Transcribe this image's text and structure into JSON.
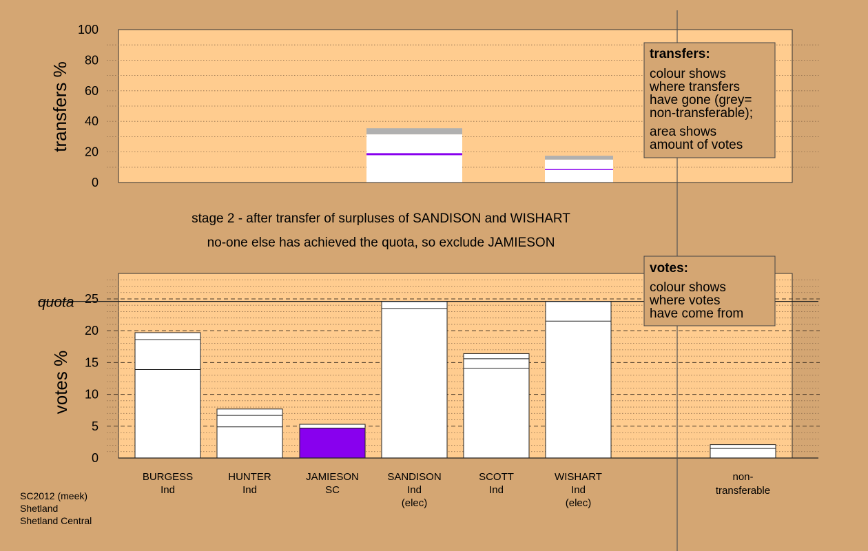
{
  "top_chart": {
    "ylabel": "transfers %",
    "ylim": [
      0,
      100
    ],
    "ticks": [
      0,
      20,
      40,
      60,
      80,
      100
    ]
  },
  "bottom_chart": {
    "ylabel": "votes %",
    "ylim": [
      0,
      29
    ],
    "ticks": [
      0,
      5,
      10,
      15,
      20,
      25
    ],
    "quota_label": "quota",
    "quota": 24.6
  },
  "stage_lines": [
    "stage 2 - after transfer of surpluses of SANDISON and WISHART",
    "no-one else has achieved the quota, so exclude JAMIESON"
  ],
  "legend_transfers": {
    "title": "transfers:",
    "lines": [
      "colour shows",
      "where transfers",
      "have gone (grey=",
      "non-transferable);",
      "area shows",
      "amount of votes"
    ]
  },
  "legend_votes": {
    "title": "votes:",
    "lines": [
      "colour shows",
      "where votes",
      "have come from"
    ]
  },
  "candidates": [
    {
      "name": "BURGESS",
      "party": "Ind",
      "status": ""
    },
    {
      "name": "HUNTER",
      "party": "Ind",
      "status": ""
    },
    {
      "name": "JAMIESON",
      "party": "SC",
      "status": ""
    },
    {
      "name": "SANDISON",
      "party": "Ind",
      "status": "(elec)"
    },
    {
      "name": "SCOTT",
      "party": "Ind",
      "status": ""
    },
    {
      "name": "WISHART",
      "party": "Ind",
      "status": "(elec)"
    }
  ],
  "nontransferable_label": [
    "non-",
    "transferable"
  ],
  "footer": [
    "SC2012 (meek)",
    "Shetland",
    "Shetland Central"
  ],
  "colors": {
    "background": "#d4a673",
    "plot_area": "#ffcc8f",
    "bar": "#ffffff",
    "jamieson": "#8800ee",
    "nontransferable": "#b0b0b0"
  },
  "chart_data": [
    {
      "type": "bar",
      "title": "",
      "ylabel": "transfers %",
      "ylim": [
        0,
        100
      ],
      "grid": true,
      "categories": [
        "SANDISON",
        "WISHART"
      ],
      "bars": [
        {
          "category": "SANDISON",
          "total": 35.5,
          "nontransferable_from": 31.5,
          "jamieson_marker": 18.5
        },
        {
          "category": "WISHART",
          "total": 17.5,
          "nontransferable_from": 15.0,
          "jamieson_marker": 8.5
        }
      ]
    },
    {
      "type": "bar",
      "title": "",
      "ylabel": "votes %",
      "ylim": [
        0,
        29
      ],
      "grid": true,
      "quota": 24.6,
      "categories": [
        "BURGESS",
        "HUNTER",
        "JAMIESON",
        "SANDISON",
        "SCOTT",
        "WISHART",
        "non-transferable"
      ],
      "series": [
        {
          "name": "BURGESS",
          "segments": [
            13.9,
            18.6,
            19.7
          ]
        },
        {
          "name": "HUNTER",
          "segments": [
            4.9,
            6.7,
            7.7
          ]
        },
        {
          "name": "JAMIESON",
          "segments": [
            4.7,
            5.3
          ],
          "first_fill": "jamieson"
        },
        {
          "name": "SANDISON",
          "segments": [
            23.5,
            24.6
          ]
        },
        {
          "name": "SCOTT",
          "segments": [
            14.1,
            15.6,
            16.4
          ]
        },
        {
          "name": "WISHART",
          "segments": [
            21.5,
            24.6
          ]
        },
        {
          "name": "non-transferable",
          "segments": [
            1.5,
            2.1
          ]
        }
      ]
    }
  ]
}
